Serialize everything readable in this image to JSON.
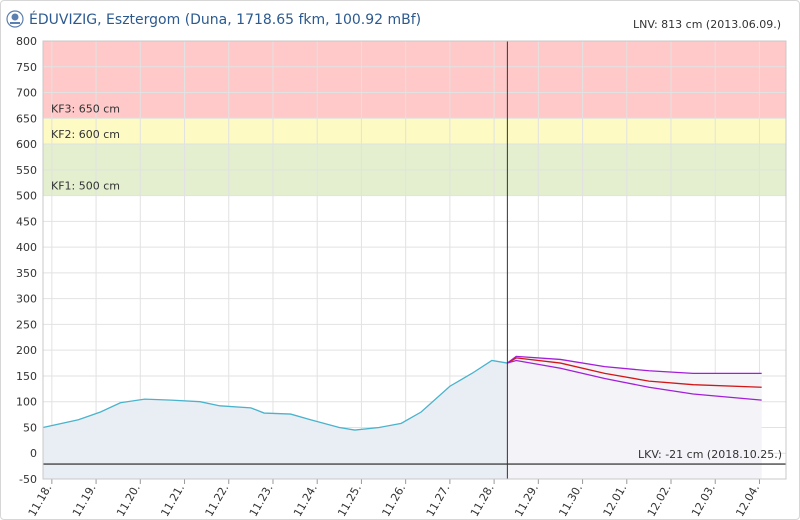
{
  "chart_data": {
    "type": "line",
    "title": "ÉDUVIZIG, Esztergom (Duna, 1718.65 fkm, 100.92 mBf)",
    "subtitle": "LNV: 813 cm (2013.06.09.)",
    "xlim": [
      -0.2,
      16.6
    ],
    "xticks": [
      {
        "value": 0,
        "label": "11.18."
      },
      {
        "value": 1,
        "label": "11.19."
      },
      {
        "value": 2,
        "label": "11.20."
      },
      {
        "value": 3,
        "label": "11.21."
      },
      {
        "value": 4,
        "label": "11.22."
      },
      {
        "value": 5,
        "label": "11.23."
      },
      {
        "value": 6,
        "label": "11.24."
      },
      {
        "value": 7,
        "label": "11.25."
      },
      {
        "value": 8,
        "label": "11.26."
      },
      {
        "value": 9,
        "label": "11.27."
      },
      {
        "value": 10,
        "label": "11.28."
      },
      {
        "value": 11,
        "label": "11.29."
      },
      {
        "value": 12,
        "label": "11.30."
      },
      {
        "value": 13,
        "label": "12.01."
      },
      {
        "value": 14,
        "label": "12.02."
      },
      {
        "value": 15,
        "label": "12.03."
      },
      {
        "value": 16,
        "label": "12.04."
      }
    ],
    "ylim": [
      -50,
      800
    ],
    "yticks": [
      -50,
      0,
      50,
      100,
      150,
      200,
      250,
      300,
      350,
      400,
      450,
      500,
      550,
      600,
      650,
      700,
      750,
      800
    ],
    "grid": true,
    "now": 10.3,
    "bands": [
      {
        "from": 650,
        "to": 800,
        "color": "#ffc9c9",
        "label": "KF3: 650 cm"
      },
      {
        "from": 600,
        "to": 650,
        "color": "#fdfac3",
        "label": "KF2: 600 cm"
      },
      {
        "from": 500,
        "to": 600,
        "color": "#e3efcf",
        "label": "KF1: 500 cm"
      }
    ],
    "lkv": {
      "value": -21,
      "label": "LKV: -21 cm (2018.10.25.)"
    },
    "series": [
      {
        "color": "#4ab3cc",
        "fill": "#e9edf4",
        "x": [
          -0.2,
          0.6,
          1.1,
          1.55,
          2.1,
          2.7,
          3.35,
          3.8,
          4.5,
          4.8,
          5.4,
          5.85,
          6.5,
          6.85,
          7.4,
          7.9,
          8.35,
          9.0,
          9.5,
          9.95,
          10.3
        ],
        "values": [
          50,
          65,
          80,
          98,
          105,
          103,
          100,
          92,
          88,
          78,
          76,
          65,
          50,
          45,
          50,
          58,
          80,
          130,
          155,
          180,
          175
        ]
      },
      {
        "color": "#a21fd9",
        "fill": "#f3f3f8",
        "x": [
          10.3,
          10.5,
          11.5,
          12.5,
          13.5,
          14.5,
          16.05
        ],
        "values": [
          175,
          188,
          182,
          168,
          160,
          155,
          155
        ]
      },
      {
        "color": "#d01818",
        "x": [
          10.3,
          10.5,
          11.5,
          12.5,
          13.5,
          14.5,
          16.05
        ],
        "values": [
          175,
          185,
          175,
          155,
          140,
          133,
          128
        ]
      },
      {
        "color": "#a21fd9",
        "x": [
          10.3,
          10.5,
          11.5,
          12.5,
          13.5,
          14.5,
          16.05
        ],
        "values": [
          175,
          180,
          165,
          145,
          128,
          115,
          103
        ]
      }
    ]
  }
}
